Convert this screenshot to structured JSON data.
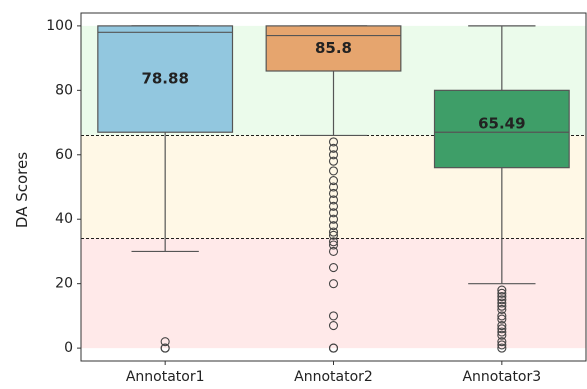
{
  "chart_data": {
    "type": "box",
    "ylabel": "DA Scores",
    "ylim": [
      -4,
      104
    ],
    "yticks": [
      0,
      20,
      40,
      60,
      80,
      100
    ],
    "categories": [
      "Annotator1",
      "Annotator2",
      "Annotator3"
    ],
    "bands": [
      {
        "from": 0,
        "to": 34,
        "color": "#ffe9e9"
      },
      {
        "from": 34,
        "to": 66,
        "color": "#fff8e6"
      },
      {
        "from": 66,
        "to": 100,
        "color": "#ebfbeb"
      }
    ],
    "thresholds": [
      34,
      66
    ],
    "series": [
      {
        "category": "Annotator1",
        "color": "#92c7df",
        "q1": 67,
        "median": 98,
        "q3": 100,
        "whisker_low": 30,
        "whisker_high": 100,
        "mean_label": "78.88",
        "outliers": [
          0,
          0,
          2
        ]
      },
      {
        "category": "Annotator2",
        "color": "#e6a56e",
        "q1": 86,
        "median": 97,
        "q3": 100,
        "whisker_low": 66,
        "whisker_high": 100,
        "mean_label": "85.8",
        "outliers": [
          0,
          0,
          7,
          10,
          20,
          25,
          30,
          32,
          33,
          35,
          36,
          38,
          40,
          42,
          44,
          46,
          48,
          50,
          52,
          55,
          58,
          60,
          62,
          64
        ]
      },
      {
        "category": "Annotator3",
        "color": "#3e9e68",
        "q1": 56,
        "median": 67,
        "q3": 80,
        "whisker_low": 20,
        "whisker_high": 100,
        "mean_label": "65.49",
        "outliers": [
          0,
          1,
          2,
          4,
          5,
          6,
          7,
          9,
          10,
          12,
          13,
          14,
          15,
          16,
          17,
          18
        ]
      }
    ]
  }
}
